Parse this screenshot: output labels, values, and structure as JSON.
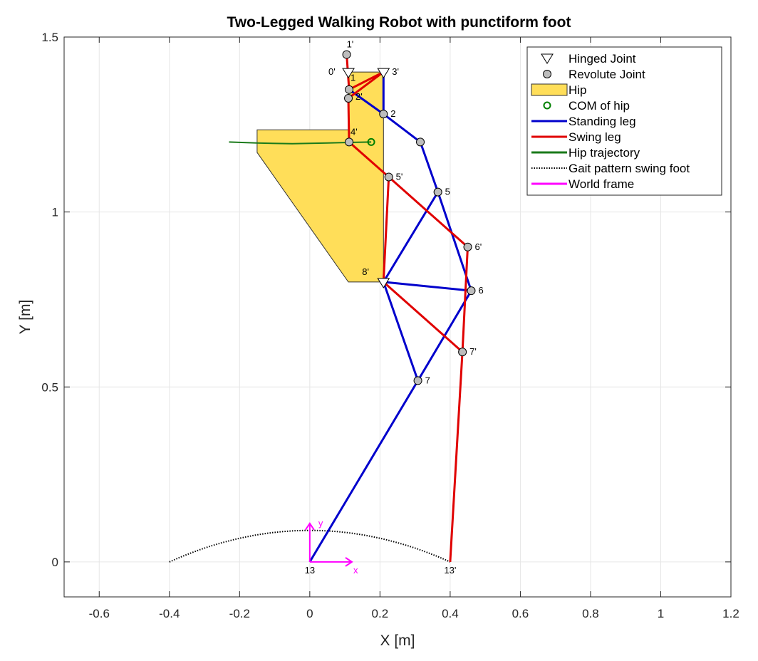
{
  "chart_data": {
    "type": "line",
    "title": "Two-Legged Walking Robot with punctiform foot",
    "xlabel": "X [m]",
    "ylabel": "Y [m]",
    "xlim": [
      -0.7,
      1.2
    ],
    "ylim": [
      -0.1,
      1.5
    ],
    "xticks": [
      -0.6,
      -0.4,
      -0.2,
      0,
      0.2,
      0.4,
      0.6,
      0.8,
      1,
      1.2
    ],
    "xtick_labels": [
      "-0.6",
      "-0.4",
      "-0.2",
      "0",
      "0.2",
      "0.4",
      "0.6",
      "0.8",
      "1",
      "1.2"
    ],
    "yticks": [
      0,
      0.5,
      1,
      1.5
    ],
    "ytick_labels": [
      "0",
      "0.5",
      "1",
      "1.5"
    ],
    "grid": true,
    "legend_position": "top-right",
    "colors": {
      "standing_leg": "#0000cc",
      "swing_leg": "#e00000",
      "hip_fill": "#ffde59",
      "hip_trajectory": "#1a7a1a",
      "com": "#008000",
      "world_frame": "#ff00ff",
      "joint_fill": "#bdbdbd",
      "grid": "#e6e6e6"
    },
    "hip_polygon": [
      [
        0.11,
        1.4
      ],
      [
        0.21,
        1.4
      ],
      [
        0.21,
        0.8
      ],
      [
        0.11,
        0.8
      ],
      [
        -0.15,
        1.17
      ],
      [
        -0.15,
        1.235
      ],
      [
        0.11,
        1.235
      ]
    ],
    "standing_leg": [
      [
        0.21,
        1.4
      ],
      [
        0.21,
        1.28
      ],
      [
        0.315,
        1.2
      ],
      [
        0.365,
        1.057
      ],
      [
        0.21,
        0.8
      ],
      [
        0.46,
        0.775
      ],
      [
        0.308,
        0.518
      ],
      [
        0.0,
        0.0
      ]
    ],
    "standing_leg_branches": [
      [
        [
          0.112,
          1.35
        ],
        [
          0.21,
          1.28
        ]
      ],
      [
        [
          0.365,
          1.057
        ],
        [
          0.46,
          0.775
        ]
      ],
      [
        [
          0.21,
          0.8
        ],
        [
          0.308,
          0.518
        ]
      ]
    ],
    "swing_leg": [
      [
        0.105,
        1.45
      ],
      [
        0.112,
        1.35
      ],
      [
        0.21,
        1.4
      ],
      [
        0.11,
        1.325
      ],
      [
        0.112,
        1.2
      ],
      [
        0.225,
        1.1
      ],
      [
        0.45,
        0.9
      ],
      [
        0.435,
        0.6
      ],
      [
        0.4,
        0.0
      ]
    ],
    "swing_leg_branches": [
      [
        [
          0.225,
          1.1
        ],
        [
          0.21,
          0.8
        ]
      ],
      [
        [
          0.21,
          0.8
        ],
        [
          0.435,
          0.6
        ]
      ]
    ],
    "hinged_joints": [
      {
        "x": 0.11,
        "y": 1.4,
        "label": "0'"
      },
      {
        "x": 0.21,
        "y": 1.4,
        "label": "3'"
      },
      {
        "x": 0.21,
        "y": 0.8,
        "label": "8'"
      }
    ],
    "revolute_joints": [
      {
        "x": 0.105,
        "y": 1.45,
        "label": "1'"
      },
      {
        "x": 0.112,
        "y": 1.35,
        "label": "1"
      },
      {
        "x": 0.11,
        "y": 1.325,
        "label": "2'"
      },
      {
        "x": 0.21,
        "y": 1.28,
        "label": "2"
      },
      {
        "x": 0.315,
        "y": 1.2,
        "label": ""
      },
      {
        "x": 0.112,
        "y": 1.2,
        "label": "4'"
      },
      {
        "x": 0.225,
        "y": 1.1,
        "label": "5'"
      },
      {
        "x": 0.365,
        "y": 1.057,
        "label": "5"
      },
      {
        "x": 0.45,
        "y": 0.9,
        "label": "6'"
      },
      {
        "x": 0.46,
        "y": 0.775,
        "label": "6"
      },
      {
        "x": 0.435,
        "y": 0.6,
        "label": "7'"
      },
      {
        "x": 0.308,
        "y": 0.518,
        "label": "7"
      }
    ],
    "foot_labels": [
      {
        "x": 0.0,
        "y": 0.0,
        "label": "13"
      },
      {
        "x": 0.4,
        "y": 0.0,
        "label": "13'"
      }
    ],
    "com": {
      "x": 0.175,
      "y": 1.2
    },
    "hip_trajectory": [
      [
        -0.23,
        1.2
      ],
      [
        -0.15,
        1.197
      ],
      [
        -0.05,
        1.195
      ],
      [
        0.05,
        1.197
      ],
      [
        0.12,
        1.199
      ],
      [
        0.175,
        1.2
      ]
    ],
    "gait_pattern": {
      "x_start": -0.4,
      "x_end": 0.4,
      "peak": 0.09
    },
    "world_frame": {
      "origin": [
        0.0,
        0.0
      ],
      "length": 0.11,
      "x_label": "x",
      "y_label": "y"
    },
    "legend": [
      {
        "label": "Hinged Joint",
        "marker": "triangle"
      },
      {
        "label": "Revolute Joint",
        "marker": "circle"
      },
      {
        "label": "Hip",
        "marker": "patch"
      },
      {
        "label": "COM of hip",
        "marker": "com-circle"
      },
      {
        "label": "Standing leg",
        "marker": "line-blue"
      },
      {
        "label": "Swing leg",
        "marker": "line-red"
      },
      {
        "label": "Hip trajectory",
        "marker": "line-green"
      },
      {
        "label": "Gait pattern swing foot",
        "marker": "line-dotted"
      },
      {
        "label": "World frame",
        "marker": "line-magenta"
      }
    ]
  }
}
